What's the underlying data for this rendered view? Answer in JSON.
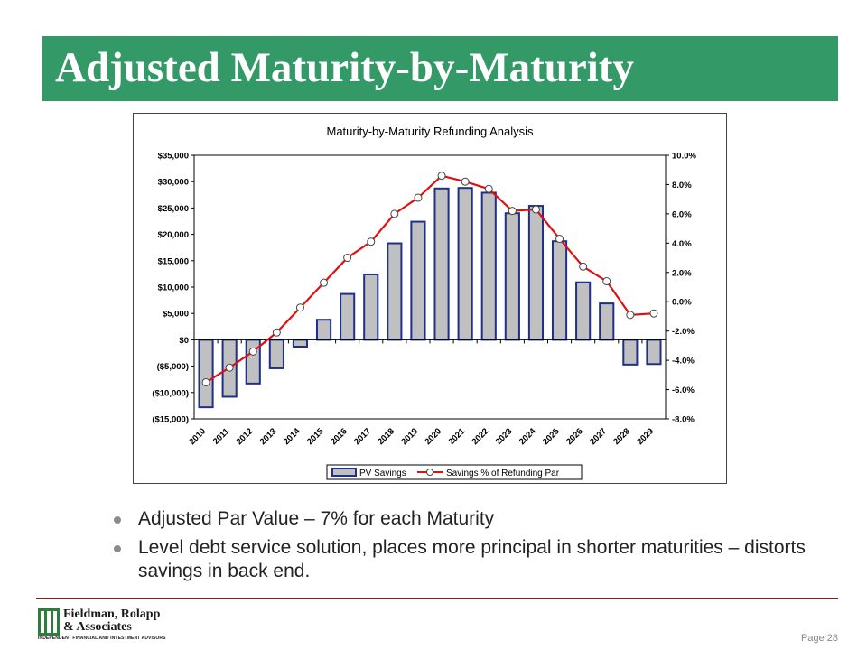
{
  "slide": {
    "title": "Adjusted Maturity-by-Maturity",
    "bullets": [
      "Adjusted Par Value – 7% for each Maturity",
      "Level debt service solution, places more principal in shorter maturities – distorts savings in back end."
    ],
    "page_label": "Page 28",
    "logo": {
      "line1": "Fieldman, Rolapp",
      "line2": "& Associates",
      "line3": "INDEPENDENT FINANCIAL AND INVESTMENT ADVISORS"
    }
  },
  "colors": {
    "title_bar": "#339966",
    "bar_fill": "#c0c0c0",
    "bar_stroke": "#1f2f8a",
    "line": "#e01010"
  },
  "chart_data": {
    "type": "bar",
    "title": "Maturity-by-Maturity Refunding Analysis",
    "categories": [
      "2010",
      "2011",
      "2012",
      "2013",
      "2014",
      "2015",
      "2016",
      "2017",
      "2018",
      "2019",
      "2020",
      "2021",
      "2022",
      "2023",
      "2024",
      "2025",
      "2026",
      "2027",
      "2028",
      "2029"
    ],
    "series": [
      {
        "name": "PV Savings",
        "type": "bar",
        "axis": "left",
        "values": [
          -12800,
          -10800,
          -8300,
          -5400,
          -1300,
          3800,
          8700,
          12400,
          18300,
          22400,
          28700,
          28800,
          27900,
          24000,
          25400,
          18700,
          10900,
          6900,
          -4700,
          -4600
        ]
      },
      {
        "name": "Savings % of Refunding Par",
        "type": "line",
        "axis": "right",
        "values": [
          -5.5,
          -4.5,
          -3.4,
          -2.1,
          -0.4,
          1.3,
          3.0,
          4.1,
          6.0,
          7.1,
          8.6,
          8.2,
          7.7,
          6.2,
          6.3,
          4.3,
          2.4,
          1.4,
          -0.9,
          -0.8
        ]
      }
    ],
    "y_left": {
      "min": -15000,
      "max": 35000,
      "ticks": [
        35000,
        30000,
        25000,
        20000,
        15000,
        10000,
        5000,
        0,
        -5000,
        -10000,
        -15000
      ],
      "tick_labels": [
        "$35,000",
        "$30,000",
        "$25,000",
        "$20,000",
        "$15,000",
        "$10,000",
        "$5,000",
        "$0",
        "($5,000)",
        "($10,000)",
        "($15,000)"
      ]
    },
    "y_right": {
      "min": -8.0,
      "max": 10.0,
      "ticks": [
        10,
        8,
        6,
        4,
        2,
        0,
        -2,
        -4,
        -6,
        -8
      ],
      "tick_labels": [
        "10.0%",
        "8.0%",
        "6.0%",
        "4.0%",
        "2.0%",
        "0.0%",
        "-2.0%",
        "-4.0%",
        "-6.0%",
        "-8.0%"
      ]
    },
    "grid": false,
    "legend_position": "bottom"
  }
}
